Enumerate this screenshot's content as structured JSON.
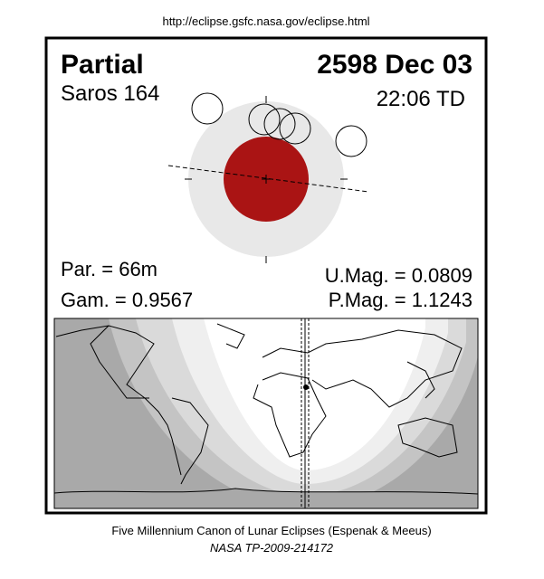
{
  "header": {
    "url": "http://eclipse.gsfc.nasa.gov/eclipse.html"
  },
  "eclipse": {
    "type": "Partial",
    "date": "2598 Dec 03",
    "saros": "Saros 164",
    "time": "22:06 TD",
    "par": "Par. =  66m",
    "gam": "Gam. = 0.9567",
    "umag": "U.Mag. = 0.0809",
    "pmag": "P.Mag. = 1.1243"
  },
  "footer": {
    "line1": "Five Millennium Canon of Lunar Eclipses (Espenak & Meeus)",
    "line2": "NASA TP-2009-214172"
  }
}
